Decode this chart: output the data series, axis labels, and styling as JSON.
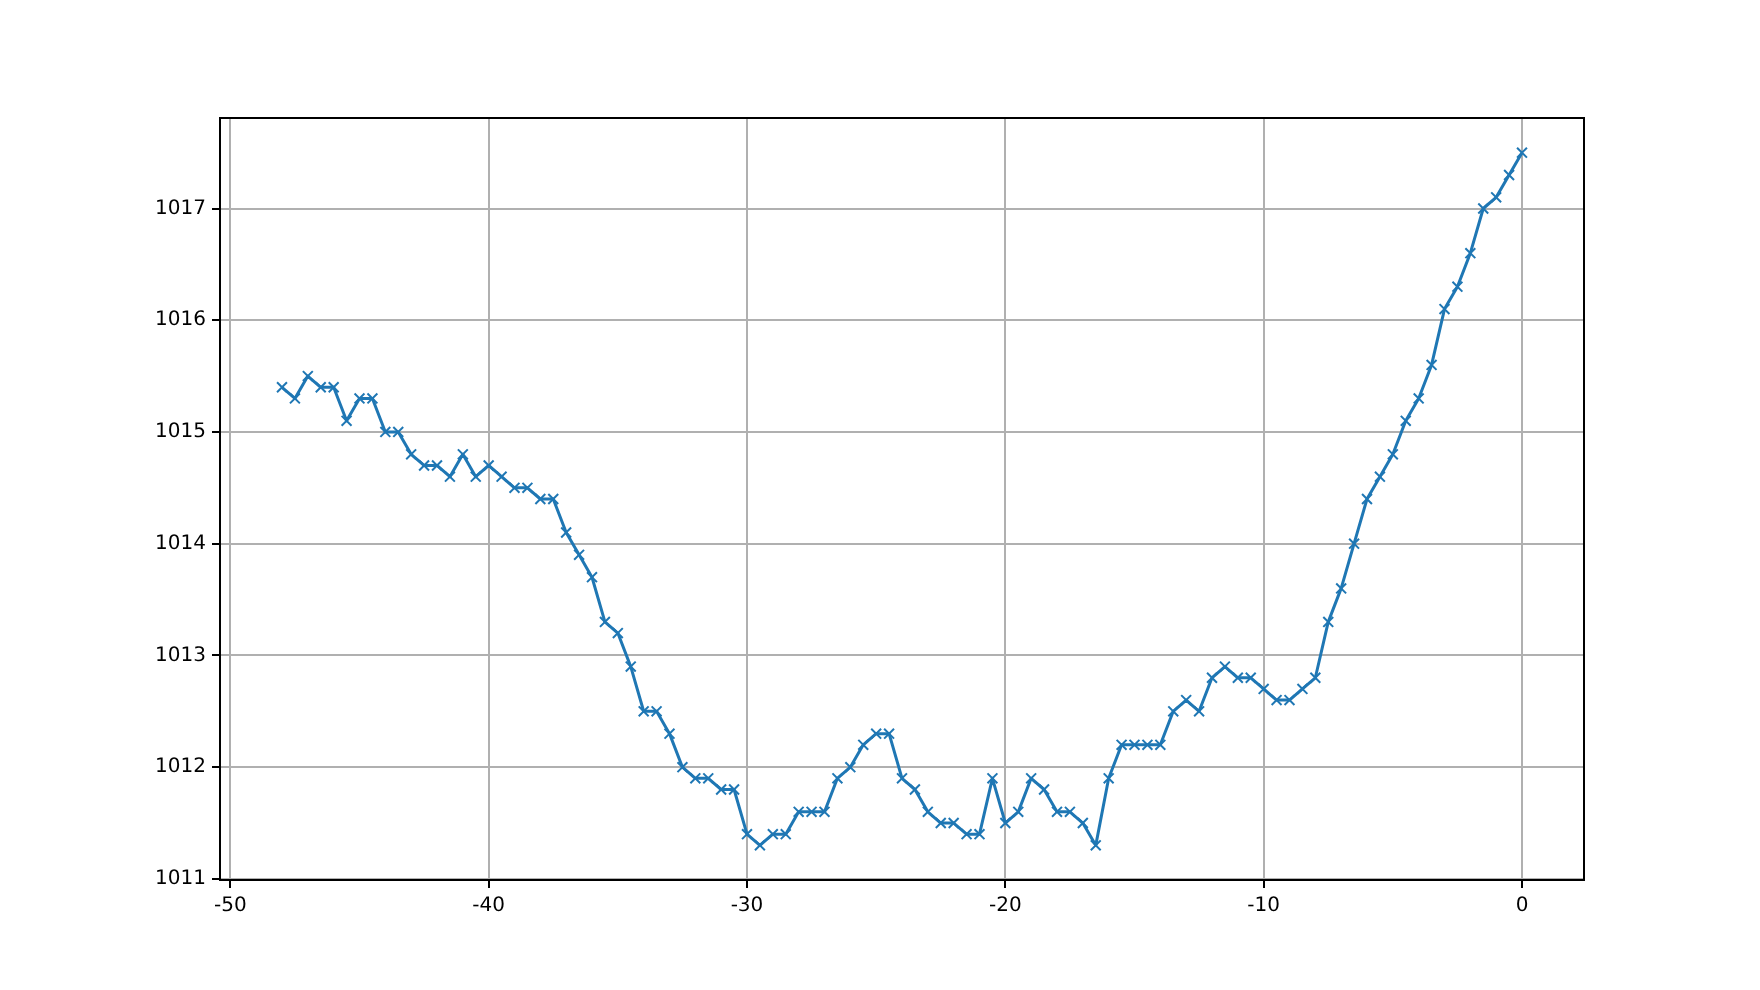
{
  "chart_data": {
    "type": "line",
    "x": [
      -48,
      -47.5,
      -47,
      -46.5,
      -46,
      -45.5,
      -45,
      -44.5,
      -44,
      -43.5,
      -43,
      -42.5,
      -42,
      -41.5,
      -41,
      -40.5,
      -40,
      -39.5,
      -39,
      -38.5,
      -38,
      -37.5,
      -37,
      -36.5,
      -36,
      -35.5,
      -35,
      -34.5,
      -34,
      -33.5,
      -33,
      -32.5,
      -32,
      -31.5,
      -31,
      -30.5,
      -30,
      -29.5,
      -29,
      -28.5,
      -28,
      -27.5,
      -27,
      -26.5,
      -26,
      -25.5,
      -25,
      -24.5,
      -24,
      -23.5,
      -23,
      -22.5,
      -22,
      -21.5,
      -21,
      -20.5,
      -20,
      -19.5,
      -19,
      -18.5,
      -18,
      -17.5,
      -17,
      -16.5,
      -16,
      -15.5,
      -15,
      -14.5,
      -14,
      -13.5,
      -13,
      -12.5,
      -12,
      -11.5,
      -11,
      -10.5,
      -10,
      -9.5,
      -9,
      -8.5,
      -8,
      -7.5,
      -7,
      -6.5,
      -6,
      -5.5,
      -5,
      -4.5,
      -4,
      -3.5,
      -3,
      -2.5,
      -2,
      -1.5,
      -1,
      -0.5,
      0
    ],
    "series": [
      {
        "color": "#1f77b4",
        "values": [
          1015.4,
          1015.3,
          1015.5,
          1015.4,
          1015.4,
          1015.1,
          1015.3,
          1015.3,
          1015.0,
          1015.0,
          1014.8,
          1014.7,
          1014.7,
          1014.6,
          1014.8,
          1014.6,
          1014.7,
          1014.6,
          1014.5,
          1014.5,
          1014.4,
          1014.4,
          1014.1,
          1013.9,
          1013.7,
          1013.3,
          1013.2,
          1012.9,
          1012.5,
          1012.5,
          1012.3,
          1012.0,
          1011.9,
          1011.9,
          1011.8,
          1011.8,
          1011.4,
          1011.3,
          1011.4,
          1011.4,
          1011.6,
          1011.6,
          1011.6,
          1011.9,
          1012.0,
          1012.2,
          1012.3,
          1012.3,
          1011.9,
          1011.8,
          1011.6,
          1011.5,
          1011.5,
          1011.4,
          1011.4,
          1011.9,
          1011.5,
          1011.6,
          1011.9,
          1011.8,
          1011.6,
          1011.6,
          1011.5,
          1011.3,
          1011.9,
          1012.2,
          1012.2,
          1012.2,
          1012.2,
          1012.5,
          1012.6,
          1012.5,
          1012.8,
          1012.9,
          1012.8,
          1012.8,
          1012.7,
          1012.6,
          1012.6,
          1012.7,
          1012.8,
          1013.3,
          1013.6,
          1014.0,
          1014.4,
          1014.6,
          1014.8,
          1015.1,
          1015.3,
          1015.6,
          1016.1,
          1016.3,
          1016.6,
          1017.0,
          1017.1,
          1017.3,
          1017.5
        ]
      }
    ],
    "xlim": [
      -50.4,
      2.4
    ],
    "xticks": [
      -50,
      -40,
      -30,
      -20,
      -10,
      0
    ],
    "ylim": [
      1010.99,
      1017.81
    ],
    "yticks": [
      1011,
      1012,
      1013,
      1014,
      1015,
      1016,
      1017
    ],
    "grid": true,
    "marker": "cross",
    "line_style": "solid"
  }
}
